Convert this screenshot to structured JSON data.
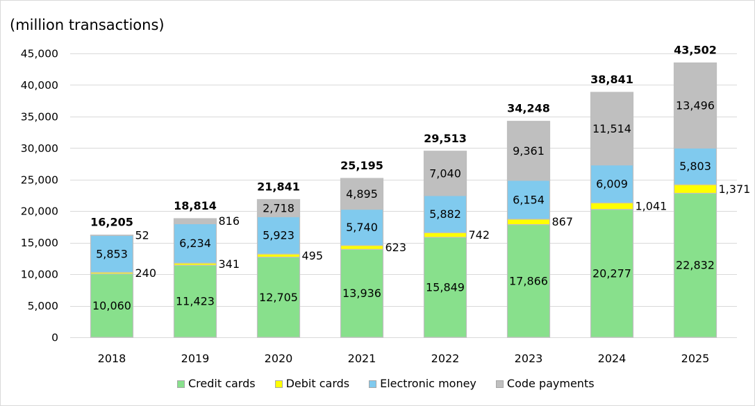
{
  "chart_data": {
    "type": "bar",
    "stacked": true,
    "title": "",
    "xlabel": "",
    "ylabel": "(million transactions)",
    "categories": [
      "2018",
      "2019",
      "2020",
      "2021",
      "2022",
      "2023",
      "2024",
      "2025"
    ],
    "series": [
      {
        "name": "Credit cards",
        "color": "#88E08C",
        "values": [
          10060,
          11423,
          12705,
          13936,
          15849,
          17866,
          20277,
          22832
        ]
      },
      {
        "name": "Debit cards",
        "color": "#FFFF00",
        "values": [
          240,
          341,
          495,
          623,
          742,
          867,
          1041,
          1371
        ]
      },
      {
        "name": "Electronic money",
        "color": "#80CAEE",
        "values": [
          5853,
          6234,
          5923,
          5740,
          5882,
          6154,
          6009,
          5803
        ]
      },
      {
        "name": "Code payments",
        "color": "#BFBFBF",
        "values": [
          52,
          816,
          2718,
          4895,
          7040,
          9361,
          11514,
          13496
        ]
      }
    ],
    "totals": [
      16205,
      18814,
      21841,
      25195,
      29513,
      34248,
      38841,
      43502
    ],
    "ylim": [
      0,
      45000
    ],
    "y_ticks": [
      {
        "value": 0,
        "label": "0"
      },
      {
        "value": 5000,
        "label": "5,000"
      },
      {
        "value": 10000,
        "label": "10,000"
      },
      {
        "value": 15000,
        "label": "15,000"
      },
      {
        "value": 20000,
        "label": "20,000"
      },
      {
        "value": 25000,
        "label": "25,000"
      },
      {
        "value": 30000,
        "label": "30,000"
      },
      {
        "value": 35000,
        "label": "35,000"
      },
      {
        "value": 40000,
        "label": "40,000"
      },
      {
        "value": 45000,
        "label": "45,000"
      }
    ],
    "grid": true,
    "legend": "bottom",
    "colors": {
      "gridline": "#D9D9D9",
      "segment_border": "#BFBFBF"
    }
  }
}
